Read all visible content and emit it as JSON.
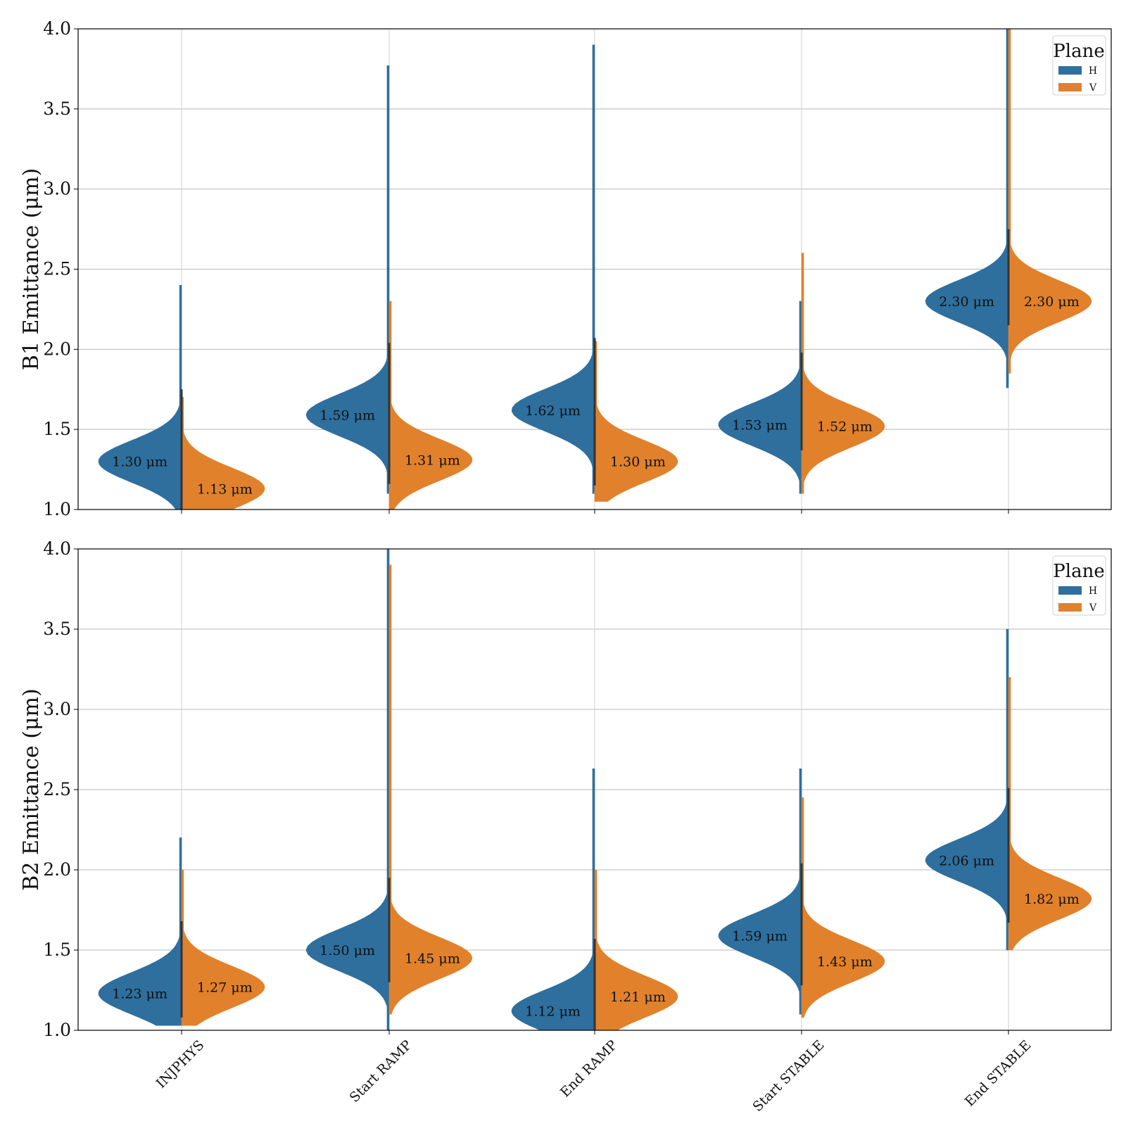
{
  "chart_data": [
    {
      "type": "violin",
      "ylabel": "B1 Emittance (μm)",
      "ylim": [
        1.0,
        4.0
      ],
      "yticks": [
        "1.0",
        "1.5",
        "2.0",
        "2.5",
        "3.0",
        "3.5",
        "4.0"
      ],
      "categories": [
        "INJPHYS",
        "Start RAMP",
        "End RAMP",
        "Start STABLE",
        "End STABLE"
      ],
      "grid": true,
      "legend": {
        "title": "Plane",
        "placement": "top-right",
        "entries": [
          "H",
          "V"
        ]
      },
      "colors": {
        "H": "#2e6f9e",
        "V": "#e1812c"
      },
      "series": [
        {
          "name": "H",
          "medians": [
            1.3,
            1.59,
            1.62,
            1.53,
            2.3
          ],
          "labels": [
            "1.30 μm",
            "1.59 μm",
            "1.62 μm",
            "1.53 μm",
            "2.30 μm"
          ],
          "ranges": [
            [
              1.0,
              2.4
            ],
            [
              1.1,
              3.77
            ],
            [
              1.1,
              3.9
            ],
            [
              1.1,
              2.3
            ],
            [
              1.76,
              4.0
            ]
          ]
        },
        {
          "name": "V",
          "medians": [
            1.13,
            1.31,
            1.3,
            1.52,
            2.3
          ],
          "labels": [
            "1.13 μm",
            "1.31 μm",
            "1.30 μm",
            "1.52 μm",
            "2.30 μm"
          ],
          "ranges": [
            [
              1.0,
              1.7
            ],
            [
              1.0,
              2.3
            ],
            [
              1.05,
              2.05
            ],
            [
              1.1,
              2.6
            ],
            [
              1.85,
              4.0
            ]
          ]
        }
      ]
    },
    {
      "type": "violin",
      "ylabel": "B2 Emittance (μm)",
      "ylim": [
        1.0,
        4.0
      ],
      "yticks": [
        "1.0",
        "1.5",
        "2.0",
        "2.5",
        "3.0",
        "3.5",
        "4.0"
      ],
      "categories": [
        "INJPHYS",
        "Start RAMP",
        "End RAMP",
        "Start STABLE",
        "End STABLE"
      ],
      "grid": true,
      "legend": {
        "title": "Plane",
        "placement": "top-right",
        "entries": [
          "H",
          "V"
        ]
      },
      "colors": {
        "H": "#2e6f9e",
        "V": "#e1812c"
      },
      "series": [
        {
          "name": "H",
          "medians": [
            1.23,
            1.5,
            1.12,
            1.59,
            2.06
          ],
          "labels": [
            "1.23 μm",
            "1.50 μm",
            "1.12 μm",
            "1.59 μm",
            "2.06 μm"
          ],
          "ranges": [
            [
              1.03,
              2.2
            ],
            [
              1.0,
              4.0
            ],
            [
              1.0,
              2.63
            ],
            [
              1.1,
              2.63
            ],
            [
              1.5,
              3.5
            ]
          ]
        },
        {
          "name": "V",
          "medians": [
            1.27,
            1.45,
            1.21,
            1.43,
            1.82
          ],
          "labels": [
            "1.27 μm",
            "1.45 μm",
            "1.21 μm",
            "1.43 μm",
            "1.82 μm"
          ],
          "ranges": [
            [
              1.03,
              2.0
            ],
            [
              1.1,
              3.9
            ],
            [
              1.0,
              2.0
            ],
            [
              1.08,
              2.45
            ],
            [
              1.5,
              3.2
            ]
          ]
        }
      ]
    }
  ]
}
